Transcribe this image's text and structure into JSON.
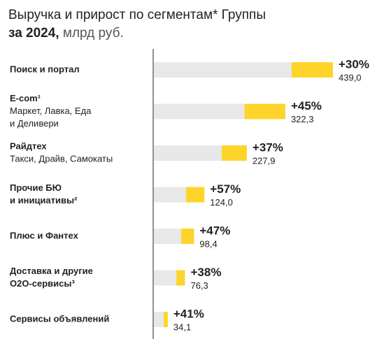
{
  "chart_data": {
    "type": "bar",
    "title": [
      "Выручка и прирост по сегментам* Группы"
    ],
    "subtitle_bold": "за 2024,",
    "subtitle": "млрд руб.",
    "categories": [
      [
        "Поиск и портал"
      ],
      [
        "E-com¹"
      ],
      [
        "Райдтех"
      ],
      [
        "Прочие БЮ",
        "и инициативы²"
      ],
      [
        "Плюс и Фантех"
      ],
      [
        "Доставка и другие",
        "O2O-сервисы³"
      ],
      [
        "Сервисы объявлений"
      ]
    ],
    "category_notes": [
      [],
      [
        "Маркет, Лавка, Еда",
        "и Деливери"
      ],
      [
        "Такси, Драйв, Самокаты"
      ],
      [],
      [],
      [],
      []
    ],
    "series": [
      {
        "color": "#e8e8e8",
        "values": [
          337.7,
          222.3,
          166.4,
          79.0,
          66.9,
          55.3,
          24.2
        ]
      },
      {
        "color": "#fed42b",
        "values": [
          439.0,
          322.3,
          227.9,
          124.0,
          98.4,
          76.3,
          34.1
        ],
        "value_labels": [
          "439,0",
          "322,3",
          "227,9",
          "124,0",
          "98,4",
          "76,3",
          "34,1"
        ]
      }
    ],
    "growth": {
      "values": [
        30,
        45,
        37,
        57,
        47,
        38,
        41
      ],
      "value_labels": [
        "+30%",
        "+45%",
        "+37%",
        "+57%",
        "+47%",
        "+38%",
        "+41%"
      ]
    },
    "xlim": [
      0,
      439.0
    ]
  }
}
